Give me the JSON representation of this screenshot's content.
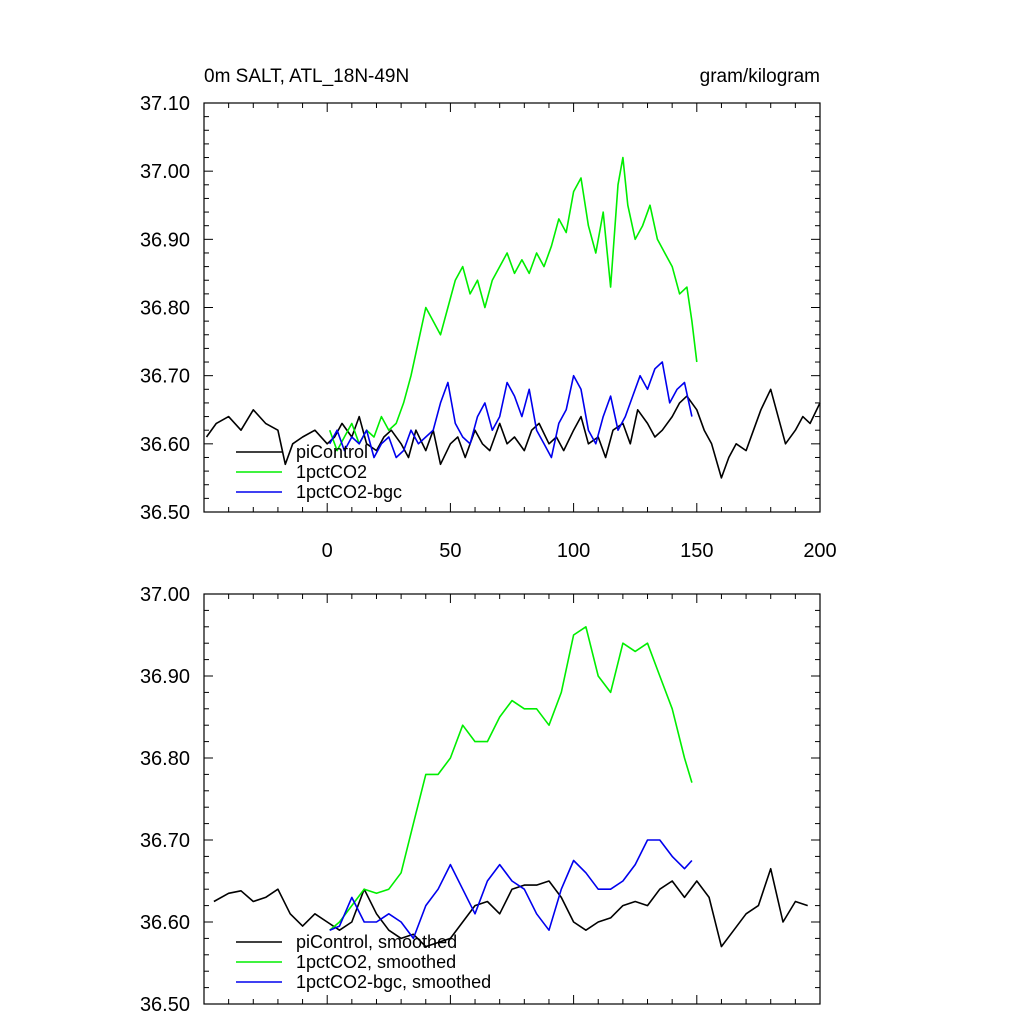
{
  "header": {
    "left_title": "0m SALT, ATL_18N-49N",
    "right_title": "gram/kilogram"
  },
  "colors": {
    "piControl": "#000000",
    "1pctCO2": "#00ee00",
    "1pctCO2-bgc": "#0000ee"
  },
  "chart_data": [
    {
      "type": "line",
      "title": "0m SALT, ATL_18N-49N",
      "units": "gram/kilogram",
      "xlim": [
        -50,
        200
      ],
      "ylim": [
        36.5,
        37.1
      ],
      "x_tick_labels": [
        "0",
        "50",
        "100",
        "150",
        "200"
      ],
      "y_tick_labels": [
        "36.50",
        "36.60",
        "36.70",
        "36.80",
        "36.90",
        "37.00",
        "37.10"
      ],
      "legend_position": "bottom-left",
      "series": [
        {
          "name": "piControl",
          "x": [
            -49,
            -45,
            -40,
            -35,
            -30,
            -25,
            -20,
            -17,
            -14,
            -10,
            -5,
            0,
            3,
            6,
            10,
            13,
            16,
            20,
            23,
            26,
            30,
            33,
            36,
            40,
            43,
            46,
            50,
            53,
            56,
            60,
            63,
            66,
            70,
            73,
            76,
            80,
            83,
            86,
            90,
            93,
            96,
            100,
            103,
            106,
            110,
            113,
            116,
            120,
            123,
            126,
            130,
            133,
            136,
            140,
            143,
            146,
            150,
            153,
            156,
            160,
            163,
            166,
            170,
            173,
            176,
            180,
            183,
            186,
            190,
            193,
            196,
            200
          ],
          "y": [
            36.61,
            36.63,
            36.64,
            36.62,
            36.65,
            36.63,
            36.62,
            36.57,
            36.6,
            36.61,
            36.62,
            36.6,
            36.61,
            36.63,
            36.61,
            36.64,
            36.6,
            36.59,
            36.61,
            36.62,
            36.6,
            36.58,
            36.62,
            36.59,
            36.62,
            36.57,
            36.6,
            36.61,
            36.58,
            36.62,
            36.6,
            36.59,
            36.63,
            36.6,
            36.61,
            36.59,
            36.62,
            36.63,
            36.6,
            36.61,
            36.59,
            36.62,
            36.64,
            36.6,
            36.61,
            36.58,
            36.62,
            36.63,
            36.6,
            36.65,
            36.63,
            36.61,
            36.62,
            36.64,
            36.66,
            36.67,
            36.65,
            36.62,
            36.6,
            36.55,
            36.58,
            36.6,
            36.59,
            36.62,
            36.65,
            36.68,
            36.64,
            36.6,
            36.62,
            36.64,
            36.63,
            36.66
          ]
        },
        {
          "name": "1pctCO2",
          "x": [
            1,
            4,
            7,
            10,
            13,
            16,
            19,
            22,
            25,
            28,
            31,
            34,
            37,
            40,
            43,
            46,
            49,
            52,
            55,
            58,
            61,
            64,
            67,
            70,
            73,
            76,
            79,
            82,
            85,
            88,
            91,
            94,
            97,
            100,
            103,
            106,
            109,
            112,
            115,
            118,
            120,
            122,
            125,
            128,
            131,
            134,
            137,
            140,
            143,
            146,
            148,
            150
          ],
          "y": [
            36.62,
            36.59,
            36.61,
            36.63,
            36.6,
            36.62,
            36.61,
            36.64,
            36.62,
            36.63,
            36.66,
            36.7,
            36.75,
            36.8,
            36.78,
            36.76,
            36.8,
            36.84,
            36.86,
            36.82,
            36.84,
            36.8,
            36.84,
            36.86,
            36.88,
            36.85,
            36.87,
            36.85,
            36.88,
            36.86,
            36.89,
            36.93,
            36.91,
            36.97,
            36.99,
            36.92,
            36.88,
            36.94,
            36.83,
            36.98,
            37.02,
            36.95,
            36.9,
            36.92,
            36.95,
            36.9,
            36.88,
            36.86,
            36.82,
            36.83,
            36.78,
            36.72
          ]
        },
        {
          "name": "1pctCO2-bgc",
          "x": [
            1,
            4,
            7,
            10,
            13,
            16,
            19,
            22,
            25,
            28,
            31,
            34,
            37,
            40,
            43,
            46,
            49,
            52,
            55,
            58,
            61,
            64,
            67,
            70,
            73,
            76,
            79,
            82,
            85,
            88,
            91,
            94,
            97,
            100,
            103,
            106,
            109,
            112,
            115,
            118,
            121,
            124,
            127,
            130,
            133,
            136,
            139,
            142,
            145,
            148
          ],
          "y": [
            36.6,
            36.62,
            36.59,
            36.61,
            36.6,
            36.62,
            36.58,
            36.6,
            36.61,
            36.58,
            36.59,
            36.62,
            36.6,
            36.61,
            36.62,
            36.66,
            36.69,
            36.63,
            36.61,
            36.6,
            36.64,
            36.66,
            36.62,
            36.64,
            36.69,
            36.67,
            36.64,
            36.68,
            36.62,
            36.6,
            36.58,
            36.63,
            36.65,
            36.7,
            36.68,
            36.62,
            36.6,
            36.64,
            36.67,
            36.62,
            36.64,
            36.67,
            36.7,
            36.68,
            36.71,
            36.72,
            36.66,
            36.68,
            36.69,
            36.64
          ]
        }
      ]
    },
    {
      "type": "line",
      "xlim": [
        -50,
        200
      ],
      "ylim": [
        36.5,
        37.0
      ],
      "y_tick_labels": [
        "36.50",
        "36.60",
        "36.70",
        "36.80",
        "36.90",
        "37.00"
      ],
      "legend_position": "bottom-left",
      "series": [
        {
          "name": "piControl, smoothed",
          "x": [
            -46,
            -40,
            -35,
            -30,
            -25,
            -20,
            -15,
            -10,
            -5,
            0,
            5,
            10,
            15,
            20,
            25,
            30,
            35,
            40,
            45,
            50,
            55,
            60,
            65,
            70,
            75,
            80,
            85,
            90,
            95,
            100,
            105,
            110,
            115,
            120,
            125,
            130,
            135,
            140,
            145,
            150,
            155,
            160,
            165,
            170,
            175,
            180,
            185,
            190,
            195
          ],
          "y": [
            36.625,
            36.635,
            36.638,
            36.625,
            36.63,
            36.64,
            36.61,
            36.595,
            36.61,
            36.6,
            36.59,
            36.6,
            36.64,
            36.61,
            36.59,
            36.58,
            36.585,
            36.57,
            36.575,
            36.58,
            36.6,
            36.62,
            36.625,
            36.61,
            36.64,
            36.645,
            36.645,
            36.65,
            36.63,
            36.6,
            36.59,
            36.6,
            36.605,
            36.62,
            36.625,
            36.62,
            36.64,
            36.65,
            36.63,
            36.65,
            36.63,
            36.57,
            36.59,
            36.61,
            36.62,
            36.665,
            36.6,
            36.625,
            36.62
          ]
        },
        {
          "name": "1pctCO2, smoothed",
          "x": [
            1,
            5,
            10,
            15,
            20,
            25,
            30,
            35,
            40,
            45,
            50,
            55,
            60,
            65,
            70,
            75,
            80,
            85,
            90,
            95,
            100,
            105,
            110,
            115,
            120,
            125,
            130,
            135,
            140,
            145,
            148
          ],
          "y": [
            36.59,
            36.6,
            36.62,
            36.64,
            36.635,
            36.64,
            36.66,
            36.72,
            36.78,
            36.78,
            36.8,
            36.84,
            36.82,
            36.82,
            36.85,
            36.87,
            36.86,
            36.86,
            36.84,
            36.88,
            36.95,
            36.96,
            36.9,
            36.88,
            36.94,
            36.93,
            36.94,
            36.9,
            36.86,
            36.8,
            36.77
          ]
        },
        {
          "name": "1pctCO2-bgc, smoothed",
          "x": [
            1,
            5,
            10,
            15,
            20,
            25,
            30,
            35,
            40,
            45,
            50,
            55,
            60,
            65,
            70,
            75,
            80,
            85,
            90,
            95,
            100,
            105,
            110,
            115,
            120,
            125,
            130,
            135,
            140,
            145,
            148
          ],
          "y": [
            36.59,
            36.595,
            36.63,
            36.6,
            36.6,
            36.61,
            36.6,
            36.58,
            36.62,
            36.64,
            36.67,
            36.64,
            36.61,
            36.65,
            36.67,
            36.65,
            36.64,
            36.61,
            36.59,
            36.64,
            36.675,
            36.66,
            36.64,
            36.64,
            36.65,
            36.67,
            36.7,
            36.7,
            36.68,
            36.665,
            36.675
          ]
        }
      ]
    }
  ]
}
